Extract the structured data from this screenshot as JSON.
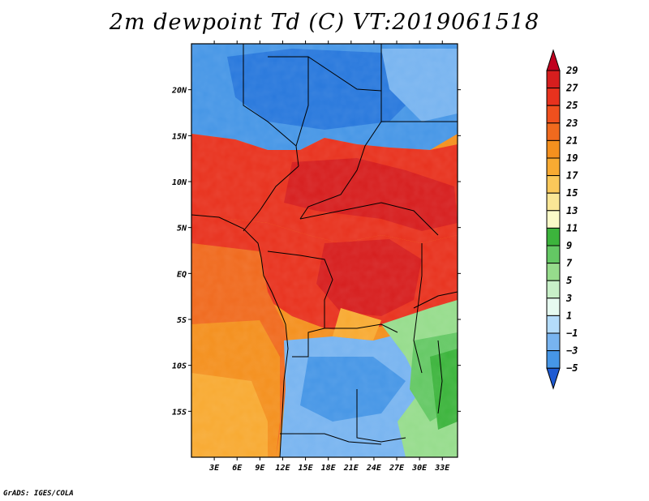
{
  "title": "2m dewpoint Td (C) VT:2019061518",
  "credit": "GrADS: IGES/COLA",
  "map": {
    "variable": "2m dewpoint",
    "units": "C",
    "valid_time": "2019061518",
    "lat_range": [
      -20,
      25
    ],
    "lon_range": [
      0,
      35
    ],
    "lat_ticks": [
      {
        "value": 20,
        "label": "20N"
      },
      {
        "value": 15,
        "label": "15N"
      },
      {
        "value": 10,
        "label": "10N"
      },
      {
        "value": 5,
        "label": "5N"
      },
      {
        "value": 0,
        "label": "EQ"
      },
      {
        "value": -5,
        "label": "5S"
      },
      {
        "value": -10,
        "label": "10S"
      },
      {
        "value": -15,
        "label": "15S"
      }
    ],
    "lon_ticks": [
      {
        "value": 3,
        "label": "3E"
      },
      {
        "value": 6,
        "label": "6E"
      },
      {
        "value": 9,
        "label": "9E"
      },
      {
        "value": 12,
        "label": "12E"
      },
      {
        "value": 15,
        "label": "15E"
      },
      {
        "value": 18,
        "label": "18E"
      },
      {
        "value": 21,
        "label": "21E"
      },
      {
        "value": 24,
        "label": "24E"
      },
      {
        "value": 27,
        "label": "27E"
      },
      {
        "value": 30,
        "label": "30E"
      },
      {
        "value": 33,
        "label": "33E"
      }
    ]
  },
  "colorbar": {
    "labels": [
      "29",
      "27",
      "25",
      "23",
      "21",
      "19",
      "17",
      "15",
      "13",
      "11",
      "9",
      "7",
      "5",
      "3",
      "1",
      "−1",
      "−3",
      "−5"
    ],
    "colors": [
      "#c0001e",
      "#d61e1e",
      "#e8321e",
      "#f0501e",
      "#f06a1e",
      "#f4901e",
      "#f8aa32",
      "#fac85a",
      "#fae696",
      "#fafac8",
      "#3cb43c",
      "#64c864",
      "#96dc8c",
      "#c8f0c8",
      "#e6faf0",
      "#b4dcfa",
      "#78b4f0",
      "#4696e6",
      "#2878dc",
      "#1e5ad2"
    ]
  }
}
